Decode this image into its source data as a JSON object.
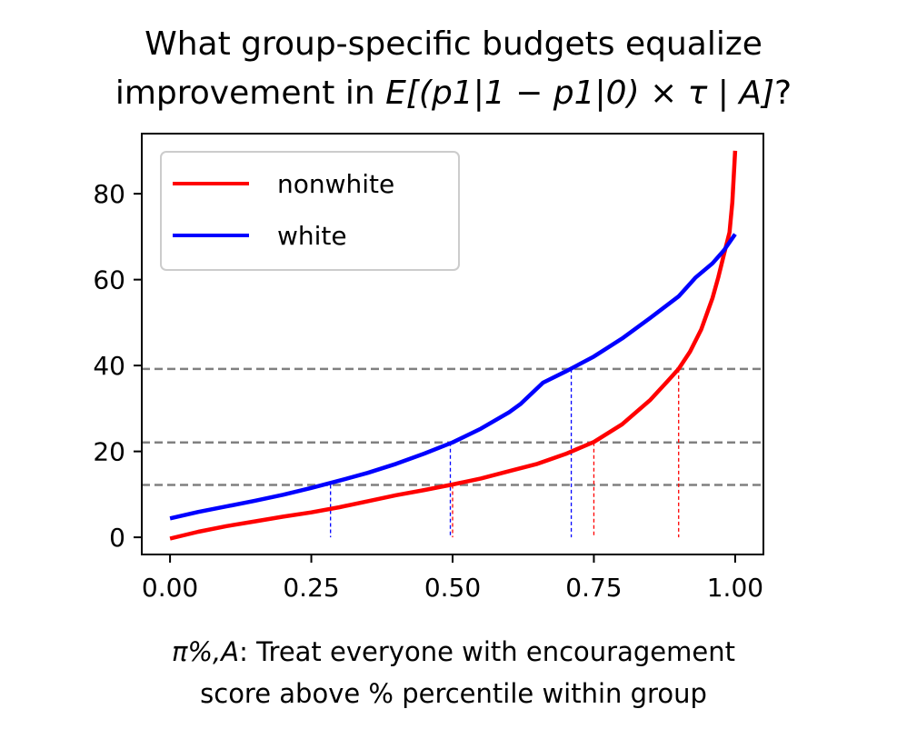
{
  "chart_data": {
    "type": "line",
    "title_line1": "What group-specific budgets equalize",
    "title_line2_prefix": "improvement in ",
    "title_line2_math": "E[(p1|1 − p1|0) × τ | A]",
    "title_line2_suffix": "?",
    "xlabel_line1_symbol": "π%,A",
    "xlabel_line1_text": ": Treat everyone with encouragement",
    "xlabel_line2": "score above % percentile within group",
    "ylabel": "",
    "xlim": [
      -0.05,
      1.05
    ],
    "ylim": [
      -4,
      94
    ],
    "xticks": [
      0.0,
      0.25,
      0.5,
      0.75,
      1.0
    ],
    "xtick_labels": [
      "0.00",
      "0.25",
      "0.50",
      "0.75",
      "1.00"
    ],
    "yticks": [
      0,
      20,
      40,
      60,
      80
    ],
    "ytick_labels": [
      "0",
      "20",
      "40",
      "60",
      "80"
    ],
    "legend_position": "upper-left",
    "series": [
      {
        "name": "nonwhite",
        "color": "#ff0000",
        "x": [
          0.0,
          0.05,
          0.1,
          0.15,
          0.2,
          0.25,
          0.3,
          0.35,
          0.4,
          0.45,
          0.5,
          0.55,
          0.6,
          0.65,
          0.7,
          0.75,
          0.8,
          0.85,
          0.88,
          0.9,
          0.92,
          0.94,
          0.96,
          0.97,
          0.98,
          0.99,
          0.995,
          1.0
        ],
        "y": [
          -0.3,
          1.3,
          2.6,
          3.7,
          4.8,
          5.8,
          7.0,
          8.4,
          9.8,
          11.0,
          12.3,
          13.7,
          15.4,
          17.1,
          19.4,
          22.2,
          26.3,
          32.0,
          36.3,
          39.2,
          43.2,
          48.4,
          55.7,
          60.5,
          65.8,
          71.0,
          78.0,
          90.0
        ]
      },
      {
        "name": "white",
        "color": "#0000ff",
        "x": [
          0.0,
          0.05,
          0.1,
          0.15,
          0.2,
          0.25,
          0.3,
          0.35,
          0.4,
          0.45,
          0.5,
          0.55,
          0.6,
          0.62,
          0.66,
          0.7,
          0.75,
          0.8,
          0.85,
          0.9,
          0.93,
          0.96,
          0.98,
          1.0
        ],
        "y": [
          4.4,
          5.9,
          7.2,
          8.5,
          9.9,
          11.5,
          13.2,
          15.0,
          17.1,
          19.5,
          22.1,
          25.3,
          29.1,
          31.0,
          36.0,
          38.6,
          42.1,
          46.3,
          51.1,
          56.1,
          60.5,
          63.8,
          66.8,
          70.6
        ]
      }
    ],
    "hlines": [
      {
        "y": 39.2,
        "color": "#808080"
      },
      {
        "y": 22.1,
        "color": "#808080"
      },
      {
        "y": 12.2,
        "color": "#808080"
      }
    ],
    "vlines": [
      {
        "x": 0.284,
        "y_top": 12.2,
        "color": "#0000ff"
      },
      {
        "x": 0.496,
        "y_top": 22.1,
        "color": "#0000ff"
      },
      {
        "x": 0.71,
        "y_top": 39.2,
        "color": "#0000ff"
      },
      {
        "x": 0.5,
        "y_top": 12.2,
        "color": "#ff0000"
      },
      {
        "x": 0.75,
        "y_top": 22.1,
        "color": "#ff0000"
      },
      {
        "x": 0.9,
        "y_top": 39.2,
        "color": "#ff0000"
      }
    ]
  }
}
